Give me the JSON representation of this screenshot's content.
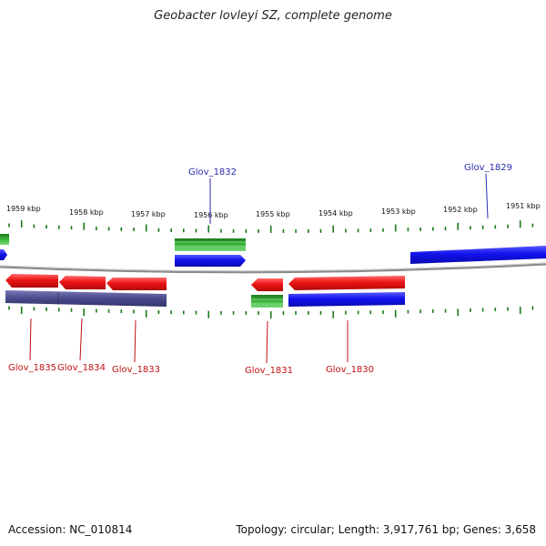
{
  "title": "Geobacter lovleyi SZ, complete genome",
  "footer": {
    "accession": "Accession: NC_010814",
    "stats": "Topology: circular; Length: 3,917,761 bp; Genes: 3,658"
  },
  "colors": {
    "forward_gene": "#1010e8",
    "reverse_gene": "#e81010",
    "rna_gene": "#2fa82f",
    "other_feature": "#4a4a8c",
    "tick": "#1a7a1a",
    "backbone": "#8a8a8a",
    "forward_label": "#2a2ab0",
    "reverse_label": "#c01010"
  },
  "tick_labels": [
    "1959 kbp",
    "1958 kbp",
    "1957 kbp",
    "1956 kbp",
    "1955 kbp",
    "1954 kbp",
    "1953 kbp",
    "1952 kbp",
    "1951 kbp"
  ],
  "gene_labels": {
    "top": [
      "Glov_1832",
      "Glov_1829"
    ],
    "bottom": [
      "Glov_1835",
      "Glov_1834",
      "Glov_1833",
      "Glov_1831",
      "Glov_1830"
    ]
  }
}
